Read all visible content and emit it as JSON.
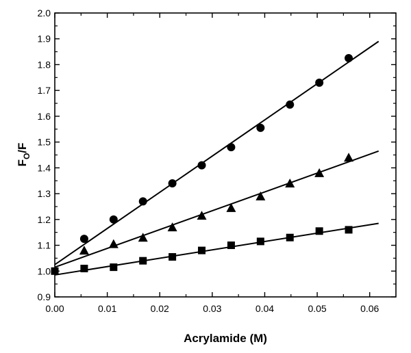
{
  "chart_data": {
    "type": "scatter",
    "title": "",
    "xlabel": "Acrylamide (M)",
    "ylabel": "F",
    "ylabel_sub": "O",
    "ylabel_tail": "/F",
    "xlim": [
      0.0,
      0.065
    ],
    "ylim": [
      0.9,
      2.0
    ],
    "xticks": [
      "0.00",
      "0.01",
      "0.02",
      "0.03",
      "0.04",
      "0.05",
      "0.06"
    ],
    "xtick_values": [
      0.0,
      0.01,
      0.02,
      0.03,
      0.04,
      0.05,
      0.06
    ],
    "yticks": [
      "0.9",
      "1.0",
      "1.1",
      "1.2",
      "1.3",
      "1.4",
      "1.5",
      "1.6",
      "1.7",
      "1.8",
      "1.9",
      "2.0"
    ],
    "ytick_values": [
      0.9,
      1.0,
      1.1,
      1.2,
      1.3,
      1.4,
      1.5,
      1.6,
      1.7,
      1.8,
      1.9,
      2.0
    ],
    "grid": false,
    "legend": "none",
    "series": [
      {
        "marker": "circle",
        "x": [
          0.0056,
          0.0112,
          0.0168,
          0.0224,
          0.028,
          0.0336,
          0.0392,
          0.0448,
          0.0504,
          0.056
        ],
        "y": [
          1.125,
          1.2,
          1.27,
          1.34,
          1.41,
          1.48,
          1.555,
          1.645,
          1.73,
          1.825
        ],
        "fit": {
          "x": [
            0.0,
            0.0617
          ],
          "y": [
            1.025,
            1.89
          ]
        }
      },
      {
        "marker": "triangle",
        "x": [
          0.0056,
          0.0112,
          0.0168,
          0.0224,
          0.028,
          0.0336,
          0.0392,
          0.0448,
          0.0504,
          0.056
        ],
        "y": [
          1.08,
          1.105,
          1.13,
          1.17,
          1.215,
          1.245,
          1.29,
          1.34,
          1.38,
          1.44
        ],
        "fit": {
          "x": [
            0.0,
            0.0617
          ],
          "y": [
            1.015,
            1.465
          ]
        }
      },
      {
        "marker": "square",
        "x": [
          0.0,
          0.0056,
          0.0112,
          0.0168,
          0.0224,
          0.028,
          0.0336,
          0.0392,
          0.0448,
          0.0504,
          0.056
        ],
        "y": [
          1.0,
          1.01,
          1.015,
          1.04,
          1.055,
          1.08,
          1.1,
          1.115,
          1.13,
          1.155,
          1.16
        ],
        "fit": {
          "x": [
            0.0,
            0.0617
          ],
          "y": [
            0.985,
            1.185
          ]
        }
      }
    ]
  }
}
